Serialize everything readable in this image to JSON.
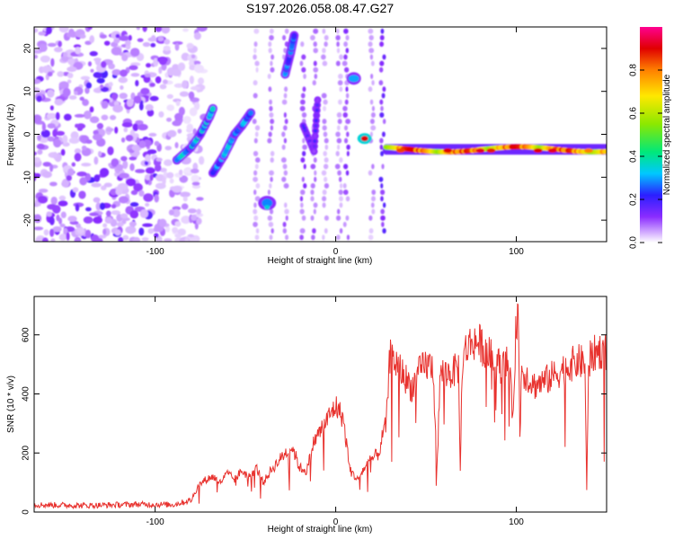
{
  "title": "S197.2026.058.08.47.G27",
  "colors": {
    "snr_line": "#e8322e",
    "axis": "#000000",
    "colormap": [
      "#ffffff",
      "#e6c8ff",
      "#a855f7",
      "#7b2cff",
      "#2b1fff",
      "#00c8ff",
      "#00e87a",
      "#8ce800",
      "#ffe800",
      "#ff8000",
      "#e00000",
      "#ff0090"
    ]
  },
  "chart_data": [
    {
      "type": "heatmap",
      "title": "S197.2026.058.08.47.G27",
      "xlabel": "Height of straight line (km)",
      "ylabel": "Frequency (Hz)",
      "xlim": [
        -167,
        150
      ],
      "ylim": [
        -25,
        25
      ],
      "x_ticks": [
        -100,
        0,
        100
      ],
      "y_ticks": [
        -20,
        -10,
        0,
        10,
        20
      ],
      "colorbar": {
        "label": "Normalized spectral amplitude",
        "range": [
          0,
          1
        ],
        "ticks": [
          "0.0",
          "0.2",
          "0.4",
          "0.6",
          "0.8"
        ]
      },
      "features": [
        {
          "name": "noise field",
          "x_range": [
            -167,
            -80
          ],
          "f_range": [
            -25,
            25
          ],
          "amplitude": 0.15
        },
        {
          "name": "diagonal chirp A",
          "points": [
            [
              -88,
              -6
            ],
            [
              -75,
              0
            ],
            [
              -68,
              5
            ]
          ],
          "amplitude": 0.4
        },
        {
          "name": "diagonal chirp B",
          "points": [
            [
              -68,
              -8
            ],
            [
              -55,
              0
            ],
            [
              -47,
              4
            ]
          ],
          "amplitude": 0.35
        },
        {
          "name": "blob low",
          "x": -38,
          "f": -16,
          "amplitude": 0.3
        },
        {
          "name": "rising streak",
          "points": [
            [
              -28,
              15
            ],
            [
              -23,
              24
            ]
          ],
          "amplitude": 0.35
        },
        {
          "name": "blob 12 Hz",
          "x": 10,
          "f": 13,
          "amplitude": 0.3
        },
        {
          "name": "blob near zero",
          "x": 16,
          "f": -1,
          "amplitude": 0.9
        },
        {
          "name": "harmonic band",
          "x_range": [
            28,
            150
          ],
          "f": -3.5,
          "amplitude": 0.85
        }
      ]
    },
    {
      "type": "line",
      "xlabel": "Height of straight line (km)",
      "ylabel": "SNR (10 * v/v)",
      "xlim": [
        -167,
        150
      ],
      "ylim": [
        0,
        730
      ],
      "x_ticks": [
        -100,
        0,
        100
      ],
      "y_ticks": [
        0,
        200,
        400,
        600
      ],
      "series": [
        {
          "name": "SNR",
          "x": [
            -167,
            -140,
            -110,
            -90,
            -80,
            -76,
            -72,
            -68,
            -64,
            -60,
            -56,
            -52,
            -48,
            -44,
            -40,
            -36,
            -32,
            -28,
            -24,
            -20,
            -16,
            -12,
            -8,
            -4,
            0,
            4,
            8,
            12,
            16,
            20,
            24,
            26,
            28,
            30,
            34,
            38,
            42,
            46,
            50,
            54,
            56,
            58,
            60,
            64,
            68,
            69,
            70,
            72,
            76,
            80,
            84,
            88,
            92,
            96,
            98,
            100,
            101,
            102,
            103,
            104,
            106,
            108,
            110,
            115,
            120,
            125,
            130,
            135,
            138,
            139,
            140,
            141,
            142,
            144,
            148,
            150
          ],
          "values": [
            25,
            22,
            26,
            25,
            40,
            90,
            110,
            120,
            100,
            130,
            110,
            140,
            120,
            150,
            100,
            140,
            170,
            200,
            220,
            150,
            140,
            240,
            280,
            320,
            360,
            320,
            140,
            110,
            150,
            180,
            200,
            260,
            300,
            530,
            500,
            460,
            420,
            470,
            500,
            490,
            140,
            480,
            470,
            470,
            490,
            130,
            500,
            550,
            580,
            570,
            540,
            510,
            490,
            510,
            320,
            650,
            700,
            250,
            500,
            470,
            460,
            440,
            430,
            440,
            460,
            480,
            500,
            510,
            500,
            70,
            500,
            520,
            530,
            540,
            550,
            540
          ]
        }
      ]
    }
  ]
}
